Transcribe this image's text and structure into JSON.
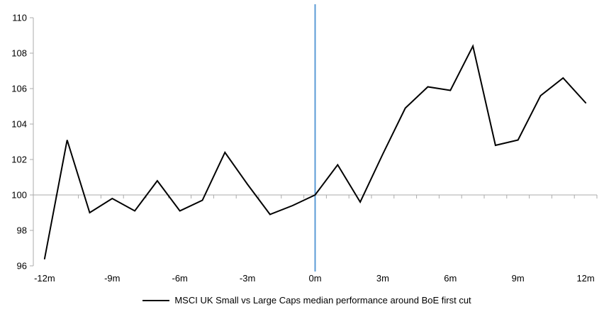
{
  "chart_data": {
    "type": "line",
    "x": [
      -12,
      -11,
      -10,
      -9,
      -8,
      -7,
      -6,
      -5,
      -4,
      -3,
      -2,
      -1,
      0,
      1,
      2,
      3,
      4,
      5,
      6,
      7,
      8,
      9,
      10,
      11,
      12
    ],
    "series": [
      {
        "name": "MSCI UK Small vs Large Caps median performance around BoE first cut",
        "values": [
          96.4,
          103.1,
          99.0,
          99.8,
          99.1,
          100.8,
          99.1,
          99.7,
          102.4,
          100.6,
          98.9,
          99.4,
          100.0,
          101.7,
          99.6,
          102.3,
          104.9,
          106.1,
          105.9,
          108.4,
          102.8,
          103.1,
          105.6,
          106.6,
          105.2
        ]
      }
    ],
    "ylim": [
      96,
      110
    ],
    "y_ticks": [
      96,
      98,
      100,
      102,
      104,
      106,
      108,
      110
    ],
    "x_tick_months": [
      -12,
      -9,
      -6,
      -3,
      0,
      3,
      6,
      9,
      12
    ],
    "x_tick_labels": [
      "-12m",
      "-9m",
      "-6m",
      "-3m",
      "0m",
      "3m",
      "6m",
      "9m",
      "12m"
    ],
    "baseline_value": 100,
    "event_line_x": 0,
    "grid": "off",
    "legend_position": "bottom",
    "colors": {
      "series_line": "#000000",
      "event_line": "#5b9bd5",
      "axis_line": "#ababab",
      "tick_mark": "#ababab",
      "text": "#000000",
      "background": "#ffffff"
    }
  }
}
